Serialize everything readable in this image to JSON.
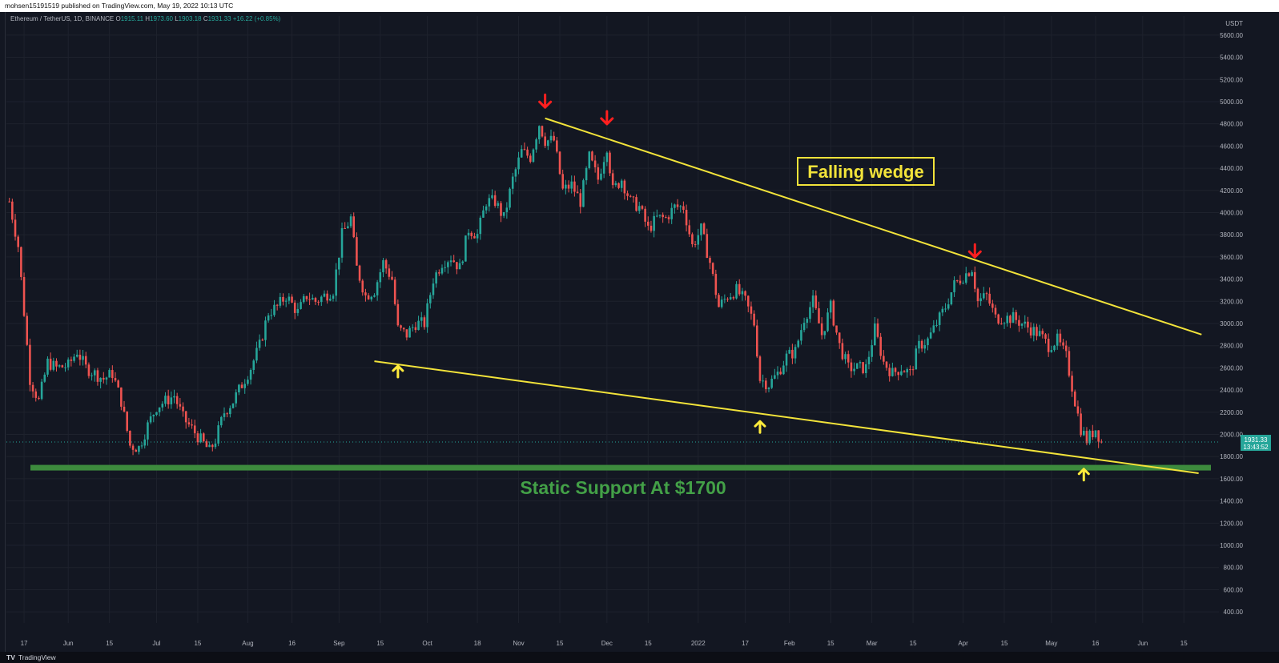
{
  "header": {
    "publisher": "mohsen15191519 published on TradingView.com, May 19, 2022 10:13 UTC"
  },
  "legend": {
    "symbol": "Ethereum / TetherUS, 1D, BINANCE",
    "open_label": "O",
    "open": "1915.11",
    "high_label": "H",
    "high": "1973.60",
    "low_label": "L",
    "low": "1903.18",
    "close_label": "C",
    "close": "1931.33",
    "change": "+16.22 (+0.85%)"
  },
  "footer": {
    "logo": "TV",
    "brand": "TradingView"
  },
  "colors": {
    "background": "#131722",
    "grid": "#1e222d",
    "up": "#26a69a",
    "down": "#ef5350",
    "wedge": "#f2e33a",
    "support": "#3d8b3d",
    "support_text": "#43a047",
    "arrow_down": "#ff1f1f",
    "arrow_up": "#ffeb3b"
  },
  "chart_data": {
    "type": "candlestick",
    "currency_label": "USDT",
    "ylim": [
      300,
      5700
    ],
    "y_ticks": [
      "5600.00",
      "5400.00",
      "5200.00",
      "5000.00",
      "4800.00",
      "4600.00",
      "4400.00",
      "4200.00",
      "4000.00",
      "3800.00",
      "3600.00",
      "3400.00",
      "3200.00",
      "3000.00",
      "2800.00",
      "2600.00",
      "2400.00",
      "2200.00",
      "2000.00",
      "1800.00",
      "1600.00",
      "1400.00",
      "1200.00",
      "1000.00",
      "800.00",
      "600.00",
      "400.00"
    ],
    "x_ticks": [
      {
        "label": "17",
        "date": "2021-05-17"
      },
      {
        "label": "Jun",
        "date": "2021-06-01"
      },
      {
        "label": "15",
        "date": "2021-06-15"
      },
      {
        "label": "Jul",
        "date": "2021-07-01"
      },
      {
        "label": "15",
        "date": "2021-07-15"
      },
      {
        "label": "Aug",
        "date": "2021-08-01"
      },
      {
        "label": "16",
        "date": "2021-08-16"
      },
      {
        "label": "Sep",
        "date": "2021-09-01"
      },
      {
        "label": "15",
        "date": "2021-09-15"
      },
      {
        "label": "Oct",
        "date": "2021-10-01"
      },
      {
        "label": "18",
        "date": "2021-10-18"
      },
      {
        "label": "Nov",
        "date": "2021-11-01"
      },
      {
        "label": "15",
        "date": "2021-11-15"
      },
      {
        "label": "Dec",
        "date": "2021-12-01"
      },
      {
        "label": "15",
        "date": "2021-12-15"
      },
      {
        "label": "2022",
        "date": "2022-01-01"
      },
      {
        "label": "17",
        "date": "2022-01-17"
      },
      {
        "label": "Feb",
        "date": "2022-02-01"
      },
      {
        "label": "15",
        "date": "2022-02-15"
      },
      {
        "label": "Mar",
        "date": "2022-03-01"
      },
      {
        "label": "15",
        "date": "2022-03-15"
      },
      {
        "label": "Apr",
        "date": "2022-04-01"
      },
      {
        "label": "15",
        "date": "2022-04-15"
      },
      {
        "label": "May",
        "date": "2022-05-01"
      },
      {
        "label": "16",
        "date": "2022-05-16"
      },
      {
        "label": "Jun",
        "date": "2022-06-01"
      },
      {
        "label": "15",
        "date": "2022-06-15"
      }
    ],
    "x_range": [
      "2021-05-11",
      "2022-06-25"
    ],
    "price_close_series": [
      [
        "2021-05-12",
        4100
      ],
      [
        "2021-05-15",
        3700
      ],
      [
        "2021-05-19",
        2500
      ],
      [
        "2021-05-22",
        2300
      ],
      [
        "2021-05-25",
        2650
      ],
      [
        "2021-05-28",
        2600
      ],
      [
        "2021-06-01",
        2620
      ],
      [
        "2021-06-04",
        2750
      ],
      [
        "2021-06-07",
        2600
      ],
      [
        "2021-06-10",
        2550
      ],
      [
        "2021-06-13",
        2500
      ],
      [
        "2021-06-16",
        2550
      ],
      [
        "2021-06-19",
        2300
      ],
      [
        "2021-06-22",
        1900
      ],
      [
        "2021-06-25",
        1880
      ],
      [
        "2021-06-28",
        2080
      ],
      [
        "2021-07-01",
        2250
      ],
      [
        "2021-07-04",
        2300
      ],
      [
        "2021-07-07",
        2350
      ],
      [
        "2021-07-10",
        2150
      ],
      [
        "2021-07-13",
        2050
      ],
      [
        "2021-07-16",
        1950
      ],
      [
        "2021-07-19",
        1850
      ],
      [
        "2021-07-21",
        1950
      ],
      [
        "2021-07-24",
        2200
      ],
      [
        "2021-07-27",
        2300
      ],
      [
        "2021-07-30",
        2450
      ],
      [
        "2021-08-02",
        2600
      ],
      [
        "2021-08-05",
        2800
      ],
      [
        "2021-08-08",
        3100
      ],
      [
        "2021-08-11",
        3150
      ],
      [
        "2021-08-14",
        3250
      ],
      [
        "2021-08-18",
        3100
      ],
      [
        "2021-08-21",
        3250
      ],
      [
        "2021-08-24",
        3200
      ],
      [
        "2021-08-27",
        3250
      ],
      [
        "2021-08-30",
        3300
      ],
      [
        "2021-09-02",
        3800
      ],
      [
        "2021-09-05",
        3950
      ],
      [
        "2021-09-07",
        3500
      ],
      [
        "2021-09-10",
        3250
      ],
      [
        "2021-09-13",
        3300
      ],
      [
        "2021-09-16",
        3550
      ],
      [
        "2021-09-19",
        3400
      ],
      [
        "2021-09-21",
        2950
      ],
      [
        "2021-09-24",
        2900
      ],
      [
        "2021-09-27",
        3000
      ],
      [
        "2021-09-30",
        3000
      ],
      [
        "2021-10-03",
        3400
      ],
      [
        "2021-10-06",
        3550
      ],
      [
        "2021-10-09",
        3600
      ],
      [
        "2021-10-12",
        3500
      ],
      [
        "2021-10-15",
        3850
      ],
      [
        "2021-10-18",
        3800
      ],
      [
        "2021-10-21",
        4100
      ],
      [
        "2021-10-24",
        4100
      ],
      [
        "2021-10-27",
        3950
      ],
      [
        "2021-10-30",
        4300
      ],
      [
        "2021-11-02",
        4550
      ],
      [
        "2021-11-05",
        4500
      ],
      [
        "2021-11-08",
        4800
      ],
      [
        "2021-11-10",
        4650
      ],
      [
        "2021-11-13",
        4650
      ],
      [
        "2021-11-16",
        4200
      ],
      [
        "2021-11-19",
        4250
      ],
      [
        "2021-11-22",
        4100
      ],
      [
        "2021-11-25",
        4500
      ],
      [
        "2021-11-28",
        4300
      ],
      [
        "2021-12-01",
        4600
      ],
      [
        "2021-12-03",
        4200
      ],
      [
        "2021-12-06",
        4300
      ],
      [
        "2021-12-09",
        4100
      ],
      [
        "2021-12-12",
        4050
      ],
      [
        "2021-12-15",
        3850
      ],
      [
        "2021-12-18",
        3950
      ],
      [
        "2021-12-21",
        3950
      ],
      [
        "2021-12-24",
        4050
      ],
      [
        "2021-12-27",
        4050
      ],
      [
        "2021-12-30",
        3700
      ],
      [
        "2022-01-02",
        3850
      ],
      [
        "2022-01-05",
        3550
      ],
      [
        "2022-01-08",
        3150
      ],
      [
        "2022-01-11",
        3250
      ],
      [
        "2022-01-14",
        3300
      ],
      [
        "2022-01-17",
        3200
      ],
      [
        "2022-01-20",
        3000
      ],
      [
        "2022-01-22",
        2500
      ],
      [
        "2022-01-25",
        2450
      ],
      [
        "2022-01-28",
        2550
      ],
      [
        "2022-01-31",
        2700
      ],
      [
        "2022-02-03",
        2750
      ],
      [
        "2022-02-06",
        3050
      ],
      [
        "2022-02-09",
        3200
      ],
      [
        "2022-02-12",
        2900
      ],
      [
        "2022-02-15",
        3150
      ],
      [
        "2022-02-18",
        2800
      ],
      [
        "2022-02-21",
        2600
      ],
      [
        "2022-02-24",
        2600
      ],
      [
        "2022-02-27",
        2600
      ],
      [
        "2022-03-02",
        2950
      ],
      [
        "2022-03-05",
        2650
      ],
      [
        "2022-03-08",
        2550
      ],
      [
        "2022-03-11",
        2600
      ],
      [
        "2022-03-14",
        2550
      ],
      [
        "2022-03-17",
        2800
      ],
      [
        "2022-03-20",
        2850
      ],
      [
        "2022-03-23",
        3000
      ],
      [
        "2022-03-26",
        3150
      ],
      [
        "2022-03-29",
        3350
      ],
      [
        "2022-04-02",
        3450
      ],
      [
        "2022-04-04",
        3500
      ],
      [
        "2022-04-06",
        3200
      ],
      [
        "2022-04-09",
        3250
      ],
      [
        "2022-04-12",
        3050
      ],
      [
        "2022-04-15",
        3050
      ],
      [
        "2022-04-18",
        3050
      ],
      [
        "2022-04-21",
        3000
      ],
      [
        "2022-04-24",
        2950
      ],
      [
        "2022-04-27",
        2900
      ],
      [
        "2022-04-30",
        2800
      ],
      [
        "2022-05-03",
        2850
      ],
      [
        "2022-05-06",
        2700
      ],
      [
        "2022-05-09",
        2300
      ],
      [
        "2022-05-11",
        2050
      ],
      [
        "2022-05-13",
        1950
      ],
      [
        "2022-05-16",
        2050
      ],
      [
        "2022-05-18",
        1931.33
      ]
    ],
    "overlays": {
      "falling_wedge_upper": [
        [
          "2021-11-10",
          4850
        ],
        [
          "2022-06-21",
          2900
        ]
      ],
      "falling_wedge_lower": [
        [
          "2021-09-13",
          2660
        ],
        [
          "2022-06-20",
          1650
        ]
      ],
      "static_support": 1700,
      "current_price_label": "1931.33",
      "countdown_label": "13:43:52"
    },
    "annotations": [
      {
        "text": "Falling wedge"
      },
      {
        "text": "Static Support At $1700"
      }
    ],
    "markers": [
      {
        "type": "down",
        "date": "2021-11-10",
        "price": 5020
      },
      {
        "type": "down",
        "date": "2021-12-01",
        "price": 4870
      },
      {
        "type": "down",
        "date": "2022-04-05",
        "price": 3670
      },
      {
        "type": "up",
        "date": "2021-09-21",
        "price": 2560
      },
      {
        "type": "up",
        "date": "2022-01-22",
        "price": 2060
      },
      {
        "type": "up",
        "date": "2022-05-12",
        "price": 1630
      }
    ]
  }
}
